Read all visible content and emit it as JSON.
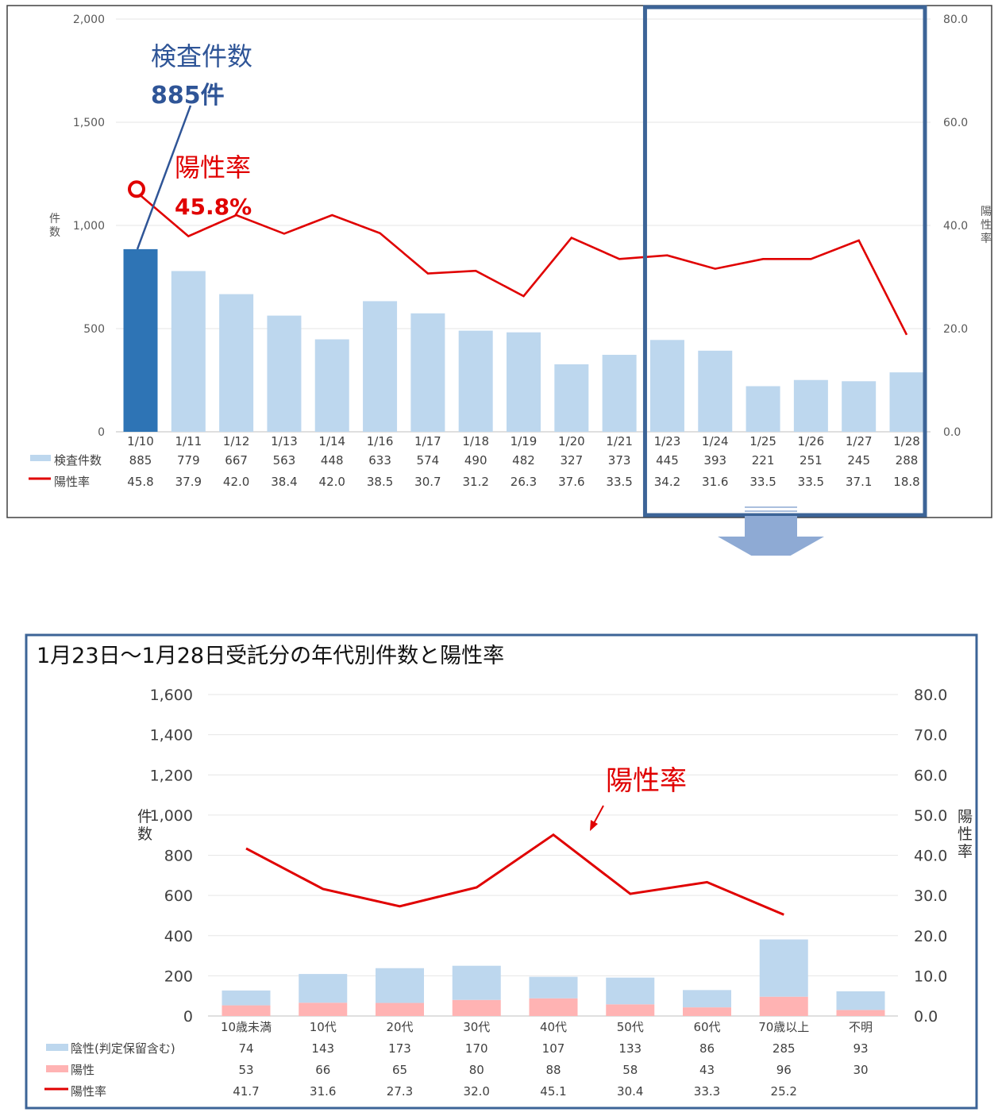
{
  "chart_data": [
    {
      "type": "bar",
      "categories": [
        "1/10",
        "1/11",
        "1/12",
        "1/13",
        "1/14",
        "1/16",
        "1/17",
        "1/18",
        "1/19",
        "1/20",
        "1/21",
        "1/23",
        "1/24",
        "1/25",
        "1/26",
        "1/27",
        "1/28"
      ],
      "ylabel": "件数",
      "y2label": "陽性率",
      "ylim": [
        0,
        2000
      ],
      "y2lim": [
        0,
        80
      ],
      "yticks": [
        "0",
        "500",
        "1,000",
        "1,500",
        "2,000"
      ],
      "y2ticks": [
        "0.0",
        "20.0",
        "40.0",
        "60.0",
        "80.0"
      ],
      "series": [
        {
          "name": "検査件数",
          "type": "bar",
          "values": [
            885,
            779,
            667,
            563,
            448,
            633,
            574,
            490,
            482,
            327,
            373,
            445,
            393,
            221,
            251,
            245,
            288
          ],
          "labels": [
            "885",
            "779",
            "667",
            "563",
            "448",
            "633",
            "574",
            "490",
            "482",
            "327",
            "373",
            "445",
            "393",
            "221",
            "251",
            "245",
            "288"
          ]
        },
        {
          "name": "陽性率",
          "type": "line",
          "axis": "right",
          "values": [
            45.8,
            37.9,
            42.0,
            38.4,
            42.0,
            38.5,
            30.7,
            31.2,
            26.3,
            37.6,
            33.5,
            34.2,
            31.6,
            33.5,
            33.5,
            37.1,
            18.8
          ],
          "labels": [
            "45.8",
            "37.9",
            "42.0",
            "38.4",
            "42.0",
            "38.5",
            "30.7",
            "31.2",
            "26.3",
            "37.6",
            "33.5",
            "34.2",
            "31.6",
            "33.5",
            "33.5",
            "37.1",
            "18.8"
          ]
        }
      ],
      "highlight_index": 0,
      "box_range": [
        11,
        16
      ],
      "annotations": {
        "count_title": "検査件数",
        "count_value": "885件",
        "rate_title": "陽性率",
        "rate_value": "45.8%"
      },
      "colors": {
        "highlight_bar": "#2e74b5",
        "bar": "#bdd7ee",
        "line": "#e00000",
        "box": "#3c6497",
        "count_annot": "#2f5597",
        "rate_annot": "#e00000"
      }
    },
    {
      "type": "bar",
      "title": "1月23日～1月28日受託分の年代別件数と陽性率",
      "categories": [
        "10歳未満",
        "10代",
        "20代",
        "30代",
        "40代",
        "50代",
        "60代",
        "70歳以上",
        "不明"
      ],
      "ylabel": "件数",
      "y2label": "陽性率",
      "ylim": [
        0,
        1600
      ],
      "y2lim": [
        0,
        80
      ],
      "yticks": [
        "0",
        "200",
        "400",
        "600",
        "800",
        "1,000",
        "1,200",
        "1,400",
        "1,600"
      ],
      "y2ticks": [
        "0.0",
        "10.0",
        "20.0",
        "30.0",
        "40.0",
        "50.0",
        "60.0",
        "70.0",
        "80.0"
      ],
      "stacked": true,
      "series": [
        {
          "name": "陽性",
          "type": "bar",
          "values": [
            53,
            66,
            65,
            80,
            88,
            58,
            43,
            96,
            30
          ],
          "labels": [
            "53",
            "66",
            "65",
            "80",
            "88",
            "58",
            "43",
            "96",
            "30"
          ]
        },
        {
          "name": "陰性(判定保留含む)",
          "type": "bar",
          "values": [
            74,
            143,
            173,
            170,
            107,
            133,
            86,
            285,
            93
          ],
          "labels": [
            "74",
            "143",
            "173",
            "170",
            "107",
            "133",
            "86",
            "285",
            "93"
          ]
        },
        {
          "name": "陽性率",
          "type": "line",
          "axis": "right",
          "values": [
            41.7,
            31.6,
            27.3,
            32.0,
            45.1,
            30.4,
            33.3,
            25.2,
            null
          ],
          "labels": [
            "41.7",
            "31.6",
            "27.3",
            "32.0",
            "45.1",
            "30.4",
            "33.3",
            "25.2",
            ""
          ]
        }
      ],
      "annotation": "陽性率",
      "colors": {
        "negative": "#bdd7ee",
        "positive": "#ffb3b3",
        "line": "#e00000",
        "frame": "#3c6497"
      }
    }
  ]
}
